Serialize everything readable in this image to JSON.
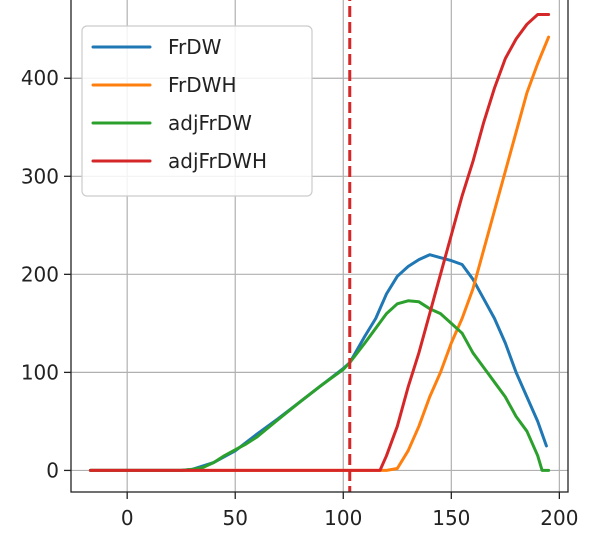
{
  "chart_data": {
    "type": "line",
    "title": "",
    "xlabel": "",
    "ylabel": "",
    "xlim": [
      -26,
      204
    ],
    "ylim": [
      -22,
      490
    ],
    "xticks": [
      0,
      50,
      100,
      150,
      200
    ],
    "yticks": [
      0,
      100,
      200,
      300,
      400
    ],
    "grid": true,
    "legend_position": "top-left",
    "vline": {
      "x": 103,
      "color": "#d62728",
      "style": "dashed"
    },
    "series": [
      {
        "name": "FrDW",
        "color": "#1f77b4",
        "x": [
          -17,
          25,
          30,
          40,
          50,
          60,
          70,
          80,
          90,
          100,
          103,
          110,
          115,
          120,
          125,
          130,
          135,
          140,
          145,
          150,
          155,
          160,
          165,
          170,
          175,
          180,
          185,
          190,
          194
        ],
        "y": [
          0,
          0,
          1,
          8,
          20,
          37,
          53,
          70,
          87,
          104,
          110,
          137,
          155,
          180,
          198,
          208,
          215,
          220,
          217,
          214,
          210,
          195,
          175,
          155,
          130,
          100,
          75,
          50,
          25
        ]
      },
      {
        "name": "FrDWH",
        "color": "#ff7f0e",
        "x": [
          -17,
          120,
          125,
          130,
          135,
          140,
          145,
          150,
          155,
          160,
          165,
          170,
          175,
          180,
          185,
          190,
          195
        ],
        "y": [
          0,
          0,
          2,
          20,
          45,
          75,
          100,
          130,
          155,
          185,
          225,
          265,
          305,
          345,
          385,
          415,
          442
        ]
      },
      {
        "name": "adjFrDW",
        "color": "#2ca02c",
        "x": [
          -17,
          25,
          30,
          35,
          40,
          45,
          50,
          55,
          60,
          70,
          80,
          90,
          100,
          103,
          110,
          115,
          120,
          125,
          130,
          135,
          140,
          145,
          150,
          155,
          160,
          165,
          170,
          175,
          180,
          185,
          190,
          192,
          195
        ],
        "y": [
          0,
          0,
          1,
          3,
          8,
          15,
          21,
          27,
          34,
          52,
          70,
          87,
          103,
          110,
          130,
          145,
          160,
          170,
          173,
          172,
          165,
          160,
          150,
          140,
          120,
          105,
          90,
          75,
          55,
          40,
          15,
          0,
          0
        ]
      },
      {
        "name": "adjFrDWH",
        "color": "#d62728",
        "x": [
          -17,
          117,
          120,
          125,
          130,
          135,
          140,
          145,
          150,
          155,
          160,
          165,
          170,
          175,
          180,
          185,
          190,
          195
        ],
        "y": [
          0,
          0,
          15,
          45,
          85,
          120,
          160,
          200,
          240,
          280,
          315,
          355,
          390,
          420,
          440,
          455,
          465,
          465
        ]
      }
    ]
  }
}
